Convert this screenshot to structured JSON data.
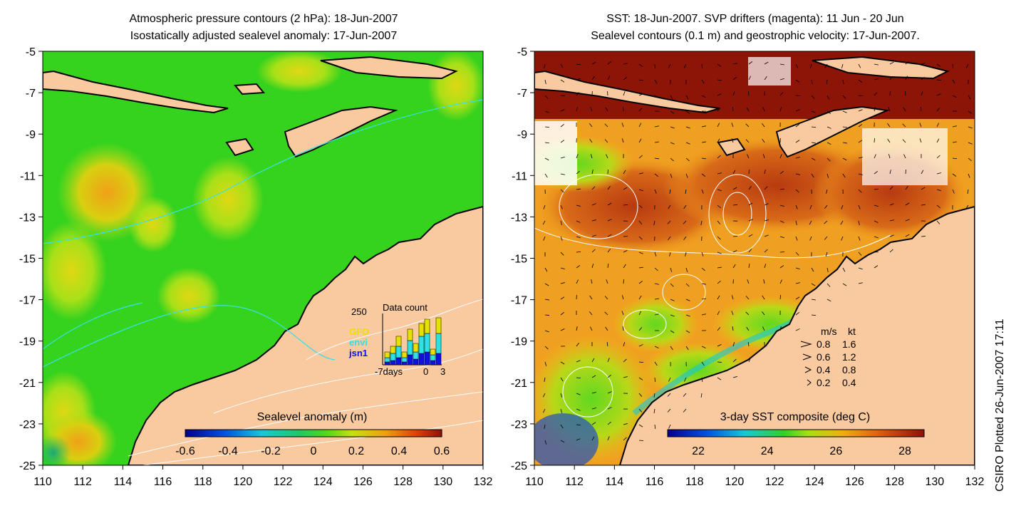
{
  "left_panel": {
    "title_line1": "Atmospheric pressure contours (2 hPa): 18-Jun-2007",
    "title_line2": "Isostatically adjusted sealevel anomaly: 17-Jun-2007",
    "y_ticks": [
      "-5",
      "-7",
      "-9",
      "-11",
      "-13",
      "-15",
      "-17",
      "-19",
      "-21",
      "-23",
      "-25"
    ],
    "x_ticks": [
      "110",
      "112",
      "114",
      "116",
      "118",
      "120",
      "122",
      "124",
      "126",
      "128",
      "130",
      "132"
    ],
    "colorbar": {
      "label": "Sealevel anomaly (m)",
      "ticks": [
        "-0.6",
        "-0.4",
        "-0.2",
        "0",
        "0.2",
        "0.4",
        "0.6"
      ]
    },
    "inset": {
      "max_label": "250",
      "title": "Data count",
      "legend": [
        {
          "name": "GFO",
          "color": "#e8e000"
        },
        {
          "name": "envi",
          "color": "#2fe0e8"
        },
        {
          "name": "jsn1",
          "color": "#1010e0"
        }
      ],
      "x_left": "-7days",
      "x_mid": "0",
      "x_right": "3"
    }
  },
  "right_panel": {
    "title_line1": "SST: 18-Jun-2007. SVP drifters (magenta): 11 Jun - 20 Jun",
    "title_line2": "Sealevel contours (0.1 m) and geostrophic velocity: 17-Jun-2007.",
    "y_ticks": [
      "-5",
      "-7",
      "-9",
      "-11",
      "-13",
      "-15",
      "-17",
      "-19",
      "-21",
      "-23",
      "-25"
    ],
    "x_ticks": [
      "110",
      "112",
      "114",
      "116",
      "118",
      "120",
      "122",
      "124",
      "126",
      "128",
      "130",
      "132"
    ],
    "colorbar": {
      "label": "3-day SST composite (deg C)",
      "ticks": [
        "22",
        "24",
        "26",
        "28"
      ]
    },
    "velocity_legend": {
      "unit1": "m/s",
      "unit2": "kt",
      "rows": [
        {
          "ms": "0.8",
          "kt": "1.6"
        },
        {
          "ms": "0.6",
          "kt": "1.2"
        },
        {
          "ms": "0.4",
          "kt": "0.8"
        },
        {
          "ms": "0.2",
          "kt": "0.4"
        }
      ]
    }
  },
  "credit": "CSIRO Plotted 26-Jun-2007 17:11",
  "colors": {
    "land": "#f9c9a0",
    "ocean_left": "#35d21e",
    "ocean_right": "#f0a020",
    "sst_warm": "#8c1508",
    "coast": "#000000"
  }
}
